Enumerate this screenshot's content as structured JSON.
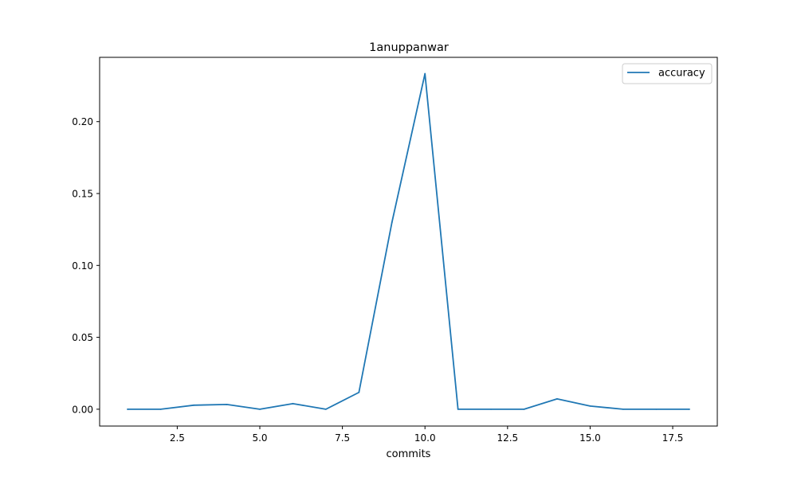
{
  "chart_data": {
    "type": "line",
    "title": "1anuppanwar",
    "xlabel": "commits",
    "ylabel": "",
    "xlim": [
      0.15,
      18.85
    ],
    "ylim": [
      -0.0117,
      0.2447
    ],
    "xticks": [
      2.5,
      5.0,
      7.5,
      10.0,
      12.5,
      15.0,
      17.5
    ],
    "xtick_labels": [
      "2.5",
      "5.0",
      "7.5",
      "10.0",
      "12.5",
      "15.0",
      "17.5"
    ],
    "yticks": [
      0.0,
      0.05,
      0.1,
      0.15,
      0.2
    ],
    "ytick_labels": [
      "0.00",
      "0.05",
      "0.10",
      "0.15",
      "0.20"
    ],
    "grid": false,
    "legend_position": "upper right",
    "series": [
      {
        "name": "accuracy",
        "color": "#1f77b4",
        "x": [
          1,
          2,
          3,
          4,
          5,
          6,
          7,
          8,
          9,
          10,
          11,
          12,
          13,
          14,
          15,
          16,
          17,
          18
        ],
        "y": [
          0.0,
          0.0,
          0.0028,
          0.0033,
          0.0,
          0.0039,
          0.0,
          0.0117,
          0.13,
          0.2333,
          0.0,
          0.0,
          0.0,
          0.0072,
          0.0022,
          0.0,
          0.0,
          0.0
        ]
      }
    ]
  }
}
